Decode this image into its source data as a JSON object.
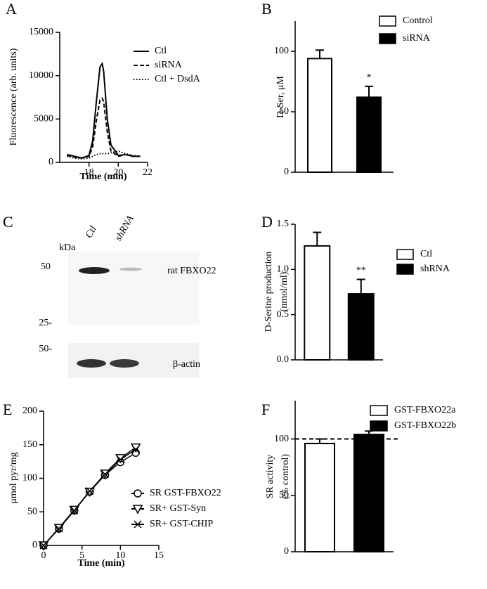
{
  "chart_data": [
    {
      "panel": "A",
      "type": "line",
      "ylabel": [
        "Fluorescence (arb. units)"
      ],
      "xlabel": "Time (min)",
      "x": [
        16.5,
        17,
        17.5,
        18,
        18.25,
        18.5,
        18.75,
        18.9,
        19,
        19.25,
        19.5,
        20,
        20.5,
        21,
        21.5
      ],
      "xlim": [
        16,
        22
      ],
      "xticks": [
        18,
        20,
        22
      ],
      "ylim": [
        0,
        15000
      ],
      "yticks": [
        0,
        5000,
        10000,
        15000
      ],
      "series": [
        {
          "name": "Ctl",
          "color": "#000000",
          "dash": "solid",
          "values": [
            900,
            700,
            500,
            800,
            2500,
            7000,
            11000,
            11400,
            10500,
            5000,
            2000,
            800,
            900,
            700,
            700
          ]
        },
        {
          "name": "siRNA",
          "color": "#000000",
          "dash": "dashed",
          "values": [
            800,
            600,
            500,
            700,
            1800,
            4800,
            7200,
            7400,
            7000,
            3500,
            1300,
            700,
            900,
            700,
            700
          ]
        },
        {
          "name": "Ctl + DsdA",
          "color": "#000000",
          "dash": "dotted",
          "values": [
            700,
            500,
            400,
            500,
            700,
            900,
            1000,
            1000,
            1000,
            1000,
            1100,
            1300,
            1000,
            800,
            700
          ]
        }
      ]
    },
    {
      "panel": "B",
      "type": "bar",
      "ylabel": [
        "D-Ser, μM"
      ],
      "ylim": [
        0,
        125
      ],
      "yticks": [
        0,
        50,
        100
      ],
      "series": [
        {
          "name": "Control",
          "color": "#ffffff",
          "values": [
            94
          ],
          "errors": [
            7
          ]
        },
        {
          "name": "siRNA",
          "color": "#000000",
          "values": [
            62
          ],
          "errors": [
            9
          ],
          "annotation": "*"
        }
      ]
    },
    {
      "panel": "D",
      "type": "bar",
      "ylabel": [
        "D-Serine production",
        "(nmol/ml)"
      ],
      "ylim": [
        0,
        1.5
      ],
      "yticks": [
        {
          "value": 0,
          "label": "0.0"
        },
        {
          "value": 0.5,
          "label": "0.5"
        },
        {
          "value": 1,
          "label": "1.0"
        },
        {
          "value": 1.5,
          "label": "1.5"
        }
      ],
      "series": [
        {
          "name": "Ctl",
          "color": "#ffffff",
          "values": [
            1.26
          ],
          "errors": [
            0.15
          ]
        },
        {
          "name": "shRNA",
          "color": "#000000",
          "values": [
            0.73
          ],
          "errors": [
            0.16
          ],
          "annotation": "**"
        }
      ]
    },
    {
      "panel": "E",
      "type": "line",
      "ylabel": [
        "μmol pyr/mg"
      ],
      "xlabel": "Time (min)",
      "x": [
        0,
        2,
        4,
        6,
        8,
        10,
        12
      ],
      "xlim": [
        0,
        15
      ],
      "xticks": [
        0,
        5,
        10,
        15
      ],
      "ylim": [
        0,
        200
      ],
      "yticks": [
        0,
        50,
        100,
        150,
        200
      ],
      "series": [
        {
          "name": "SR GST-FBXO22",
          "color": "#000000",
          "dash": "solid",
          "marker": "circle",
          "values": [
            0,
            25,
            52,
            80,
            105,
            124,
            138
          ]
        },
        {
          "name": "SR+ GST-Syn",
          "color": "#000000",
          "dash": "solid",
          "marker": "triangle-down",
          "values": [
            0,
            26,
            53,
            80,
            107,
            130,
            146
          ]
        },
        {
          "name": "SR+ GST-CHIP",
          "color": "#000000",
          "dash": "solid",
          "marker": "x",
          "values": [
            0,
            25,
            52,
            81,
            106,
            128,
            143
          ]
        }
      ]
    },
    {
      "panel": "F",
      "type": "bar",
      "ylabel": [
        "SR activity",
        "(% control)"
      ],
      "ylim": [
        0,
        134
      ],
      "yticks": [
        0,
        50,
        100
      ],
      "ref_line": 100,
      "series": [
        {
          "name": "GST-FBXO22a",
          "color": "#ffffff",
          "values": [
            96
          ],
          "errors": [
            4
          ]
        },
        {
          "name": "GST-FBXO22b",
          "color": "#000000",
          "values": [
            104
          ],
          "errors": [
            3
          ]
        }
      ]
    }
  ],
  "blot": {
    "panel": "C",
    "unit": "kDa",
    "lanes": [
      "Ctl",
      "shRNA"
    ],
    "markers": [
      "50",
      "25-",
      "50-"
    ],
    "labels": [
      "rat FBXO22",
      "β-actin"
    ]
  }
}
